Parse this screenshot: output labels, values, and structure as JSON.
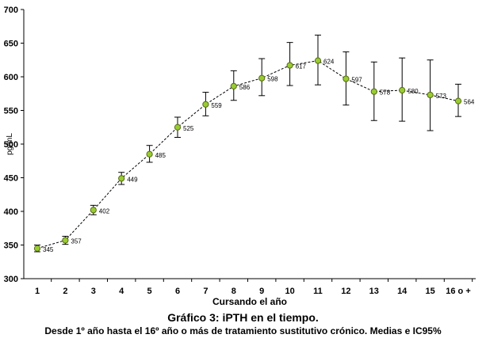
{
  "chart_data": {
    "type": "line",
    "title": "Gráfico 3: iPTH en el tiempo.",
    "subtitle": "Desde 1º año hasta el 16º año o más de tratamiento sustitutivo crónico. Medias e IC95%",
    "xlabel": "Cursando el año",
    "ylabel": "pg/mL",
    "ylim": [
      300,
      700
    ],
    "yticks": [
      300,
      350,
      400,
      450,
      500,
      550,
      600,
      650,
      700
    ],
    "categories": [
      "1",
      "2",
      "3",
      "4",
      "5",
      "6",
      "7",
      "8",
      "9",
      "10",
      "11",
      "12",
      "13",
      "14",
      "15",
      "16 o +"
    ],
    "series": [
      {
        "values": [
          345,
          357,
          402,
          449,
          485,
          525,
          559,
          586,
          598,
          617,
          624,
          597,
          578,
          580,
          573,
          564
        ],
        "ci_lower": [
          340,
          351,
          395,
          440,
          473,
          510,
          542,
          565,
          572,
          587,
          588,
          558,
          535,
          534,
          520,
          541
        ],
        "ci_upper": [
          350,
          363,
          409,
          458,
          498,
          540,
          577,
          609,
          627,
          651,
          662,
          637,
          622,
          628,
          625,
          589
        ],
        "data_labels": [
          "345",
          "357",
          "402",
          "449",
          "485",
          "525",
          "559",
          "586",
          "598",
          "617",
          "624",
          "597",
          "578",
          "580",
          "573",
          "564"
        ]
      }
    ],
    "grid": false,
    "legend": "none",
    "colors": {
      "marker": "#99cc33",
      "marker_stroke": "#556b11",
      "line": "#000000"
    }
  }
}
